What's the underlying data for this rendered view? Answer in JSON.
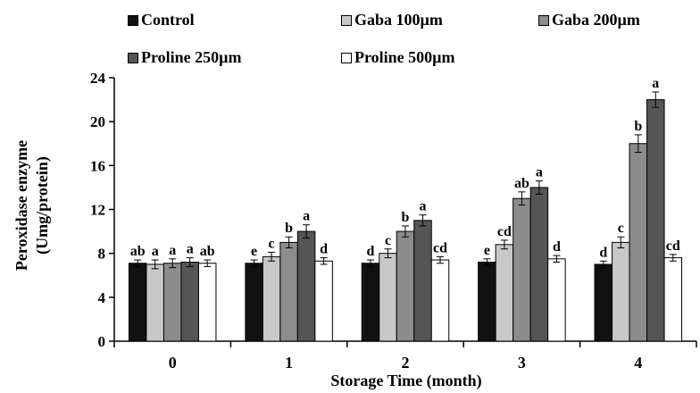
{
  "chart_data": {
    "type": "bar",
    "xlabel": "Storage Time (month)",
    "ylabel_line1": "Peroxidase enzyme",
    "ylabel_line2": "(Umg/protein)",
    "ylim": [
      0,
      24
    ],
    "yticks": [
      0,
      4,
      8,
      12,
      16,
      20,
      24
    ],
    "categories": [
      "0",
      "1",
      "2",
      "3",
      "4"
    ],
    "legend_position": "top",
    "series": [
      {
        "name": "Control",
        "color": "#111111",
        "values": [
          7.1,
          7.1,
          7.1,
          7.2,
          7.0
        ],
        "errors": [
          0.3,
          0.3,
          0.3,
          0.3,
          0.3
        ],
        "labels": [
          "ab",
          "e",
          "d",
          "e",
          "d"
        ]
      },
      {
        "name": "Gaba 100µm",
        "color": "#c8c8c8",
        "values": [
          7.0,
          7.7,
          8.0,
          8.8,
          9.0
        ],
        "errors": [
          0.4,
          0.4,
          0.4,
          0.4,
          0.5
        ],
        "labels": [
          "a",
          "c",
          "c",
          "cd",
          "c"
        ]
      },
      {
        "name": "Gaba 200µm",
        "color": "#8c8c8c",
        "values": [
          7.1,
          9.0,
          10.0,
          13.0,
          18.0
        ],
        "errors": [
          0.4,
          0.5,
          0.5,
          0.6,
          0.8
        ],
        "labels": [
          "a",
          "b",
          "b",
          "ab",
          "b"
        ]
      },
      {
        "name": "Proline 250µm",
        "color": "#555555",
        "values": [
          7.2,
          10.0,
          11.0,
          14.0,
          22.0
        ],
        "errors": [
          0.4,
          0.6,
          0.5,
          0.6,
          0.7
        ],
        "labels": [
          "a",
          "a",
          "a",
          "a",
          "a"
        ]
      },
      {
        "name": "Proline 500µm",
        "color": "#ffffff",
        "values": [
          7.1,
          7.3,
          7.4,
          7.5,
          7.6
        ],
        "errors": [
          0.3,
          0.3,
          0.3,
          0.3,
          0.3
        ],
        "labels": [
          "ab",
          "d",
          "cd",
          "d",
          "cd"
        ]
      }
    ]
  }
}
